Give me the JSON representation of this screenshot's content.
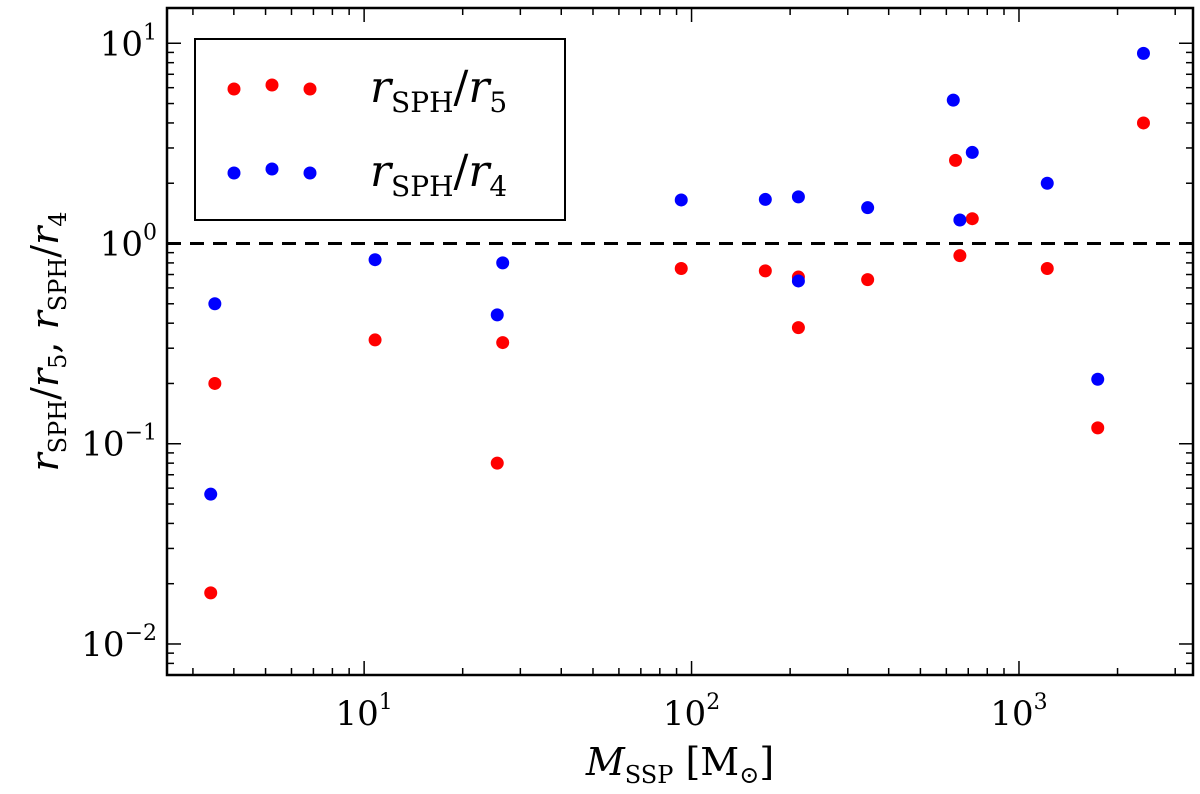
{
  "chart_data": {
    "type": "scatter",
    "xscale": "log",
    "yscale": "log",
    "xlim": [
      2.5,
      3400
    ],
    "ylim": [
      0.007,
      15
    ],
    "xlabel": {
      "main": "M",
      "sub": "SSP",
      "unit": "[M",
      "unit_sub": "⊙",
      "unit_close": "]"
    },
    "ylabel": {
      "parts": [
        {
          "t": "r",
          "style": "italic"
        },
        {
          "t": "SPH",
          "style": "sub"
        },
        {
          "t": "/",
          "style": "normal"
        },
        {
          "t": "r",
          "style": "italic"
        },
        {
          "t": "5",
          "style": "sub"
        },
        {
          "t": ",  ",
          "style": "normal"
        },
        {
          "t": "r",
          "style": "italic"
        },
        {
          "t": "SPH",
          "style": "sub"
        },
        {
          "t": "/",
          "style": "normal"
        },
        {
          "t": "r",
          "style": "italic"
        },
        {
          "t": "4",
          "style": "sub"
        }
      ]
    },
    "x_ticks": [
      {
        "value": 10,
        "base": "10",
        "exp": "1"
      },
      {
        "value": 100,
        "base": "10",
        "exp": "2"
      },
      {
        "value": 1000,
        "base": "10",
        "exp": "3"
      }
    ],
    "y_ticks": [
      {
        "value": 0.01,
        "base": "10",
        "exp": "−2"
      },
      {
        "value": 0.1,
        "base": "10",
        "exp": "−1"
      },
      {
        "value": 1,
        "label": "10",
        "exp": "0"
      },
      {
        "value": 10,
        "base": "10",
        "exp": "1"
      }
    ],
    "reference_line": {
      "y": 1.0,
      "style": "dashed",
      "color": "#000000"
    },
    "series": [
      {
        "name": "r_SPH/r_5",
        "legend": {
          "main": "r",
          "sub1": "SPH",
          "slash": "/",
          "main2": "r",
          "sub2": "5"
        },
        "color": "#ff0000",
        "points": [
          [
            3.4,
            0.018
          ],
          [
            3.5,
            0.2
          ],
          [
            10.8,
            0.33
          ],
          [
            25.5,
            0.08
          ],
          [
            26.5,
            0.32
          ],
          [
            93,
            0.75
          ],
          [
            168,
            0.73
          ],
          [
            212,
            0.68
          ],
          [
            212,
            0.38
          ],
          [
            345,
            0.66
          ],
          [
            640,
            2.6
          ],
          [
            660,
            0.87
          ],
          [
            720,
            1.33
          ],
          [
            1220,
            0.75
          ],
          [
            1740,
            0.12
          ],
          [
            2400,
            4.0
          ]
        ]
      },
      {
        "name": "r_SPH/r_4",
        "legend": {
          "main": "r",
          "sub1": "SPH",
          "slash": "/",
          "main2": "r",
          "sub2": "4"
        },
        "color": "#0000ff",
        "points": [
          [
            3.4,
            0.056
          ],
          [
            3.5,
            0.5
          ],
          [
            10.8,
            0.83
          ],
          [
            25.5,
            0.44
          ],
          [
            26.5,
            0.8
          ],
          [
            93,
            1.65
          ],
          [
            168,
            1.66
          ],
          [
            212,
            1.71
          ],
          [
            212,
            0.65
          ],
          [
            345,
            1.51
          ],
          [
            630,
            5.2
          ],
          [
            660,
            1.31
          ],
          [
            720,
            2.85
          ],
          [
            1220,
            2.0
          ],
          [
            1740,
            0.21
          ],
          [
            2400,
            8.9
          ]
        ]
      }
    ]
  }
}
